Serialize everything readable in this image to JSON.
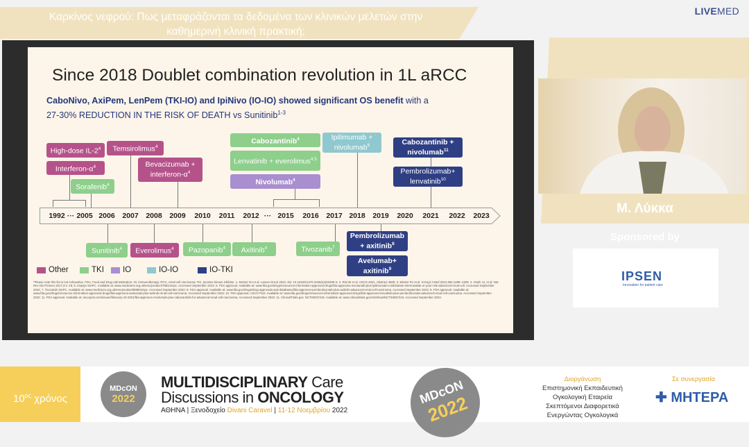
{
  "header": {
    "title": "Καρκίνος νεφρού: Πως μεταφράζονται τα δεδομένα των κλινικών μελετών στην καθημερινή κλινική πρακτική;",
    "brand_bold": "LIVE",
    "brand_light": "MED"
  },
  "slide": {
    "title": "Since 2018 Doublet combination revolution in 1L aRCC",
    "subtitle_bold": "CaboNivo, AxiPem, LenPem (TKI-IO) and IpiNivo (IO-IO) showed significant OS benefit",
    "subtitle_normal": " with a",
    "subtitle_line2": "27-30% REDUCTION IN THE RISK OF DEATH vs Sunitinib",
    "subtitle_sup": "1-3",
    "years": [
      "1992",
      "···",
      "2005",
      "2006",
      "2007",
      "2008",
      "2009",
      "2010",
      "2011",
      "2012",
      "···",
      "2015",
      "2016",
      "2017",
      "2018",
      "2019",
      "2020",
      "2021",
      "2022",
      "2023"
    ],
    "above": [
      {
        "label": "High-dose IL-2",
        "sup": "4",
        "cat": "Other"
      },
      {
        "label": "Interferon-α",
        "sup": "4",
        "cat": "Other"
      },
      {
        "label": "Sorafenib",
        "sup": "4",
        "cat": "TKI"
      },
      {
        "label": "Temsirolimus",
        "sup": "4",
        "cat": "Other"
      },
      {
        "label": "Bevacizumab + interferon-α",
        "sup": "4",
        "cat": "Other"
      },
      {
        "label": "Cabozantinib",
        "sup": "4",
        "cat": "TKI"
      },
      {
        "label": "Lenvatinib + everolimus",
        "sup": "4,5",
        "cat": "TKI"
      },
      {
        "label": "Nivolumab",
        "sup": "4",
        "cat": "IO"
      },
      {
        "label": "Ipilimumab + nivolumab",
        "sup": "6",
        "cat": "IO-IO"
      },
      {
        "label": "Cabozantinib + nivolumab",
        "sup": "11",
        "cat": "IO-TKI"
      },
      {
        "label": "Pembrolizumab+ lenvatinib",
        "sup": "10",
        "cat": "IO-TKI"
      }
    ],
    "below": [
      {
        "label": "Sunitinib",
        "sup": "4",
        "cat": "TKI"
      },
      {
        "label": "Everolimus",
        "sup": "4",
        "cat": "Other"
      },
      {
        "label": "Pazopanib",
        "sup": "4",
        "cat": "TKI"
      },
      {
        "label": "Axitinib",
        "sup": "4",
        "cat": "TKI"
      },
      {
        "label": "Tivozanib",
        "sup": "7",
        "cat": "TKI"
      },
      {
        "label": "Pembrolizumab + axitinib",
        "sup": "8",
        "cat": "IO-TKI"
      },
      {
        "label": "Avelumab+ axitinib",
        "sup": "9",
        "cat": "IO-TKI"
      }
    ],
    "legend": [
      {
        "label": "Other",
        "color": "#b5528a"
      },
      {
        "label": "TKI",
        "color": "#8dcf8b"
      },
      {
        "label": "IO",
        "color": "#a98ed0"
      },
      {
        "label": "IO-IO",
        "color": "#8fc8cf"
      },
      {
        "label": "IO-TKI",
        "color": "#2f3f84"
      }
    ],
    "footnote": "*Please note this list is not exhaustive. FDA, Food and Drug Administration; IO, immunotherapy; RCC, renal cell carcinoma; TKI, tyrosine kinase inhibitor. 1. Motzer RJ et al. Lancet Oncol 2022; doi: 10.1016/S1470-2045(22)00290-X; 2. Rini BI et al. ASCO 2021. Abstract 4500; 3. Motzer RJ et al. N Engl J Med 2021;384:1289–1300; 4. Hsieh JJ, et al. Nat Rev Dis Primers 2017;3:1–19; 5. Kisplyx SmPC. Available at: www.medicines.org.uk/emc/product/7881/smpc. Accessed September 2022; 6. FDA approval. Available at: www.fda.gov/drugs/resources-information-approved-drugs/fda-approves-nivolumab-plus-ipilimumab-combination-intermediate-or-poor-risk-advanced-renal-cell. Accessed September 2022; 7. Tivozanib SmPC. Available at: www.medicines.org.uk/emc/product/8995/smpc. Accessed September 2022; 8. FDA approval. Available at: www.fda.gov/drugs/drug-approvals-and-databases/fda-approves-pembrolizumab-plus-axitinib-advanced-renal-cell-carcinoma. Accessed September 2022; 9. FDA approval. Available at: www.fda.gov/drugs/resources-information-approved-drugs/fda-approves-avelumab-plus-axitinib-renal-cell-carcinoma. Accessed September 2022; 10. FDA approval. ASCO Post. Available at: www.fda.gov/drugs/resources-information-approved-drugs/fda-approves-lenvatinib-plus-pembrolizumab-advanced-renal-cell-carcinoma. Accessed September 2022; 11. FDA approval. Available at: ascopost.com/issues/february-10-2021/fda-approves-nivolumab-plus-cabozantinib-for-advanced-renal-cell-carcinoma. Accessed September 2022; 11. ClinicalTrials.gov. NCT03937219. Available at: www.clinicaltrials.gov/ct2/show/NCT03937219. Accessed September 2022."
  },
  "speaker": {
    "name": "Μ. Λύκκα",
    "sponsored_label": "Sponsored by",
    "sponsor": "IPSEN",
    "sponsor_tagline": "Innovation for patient care"
  },
  "footer": {
    "years_num": "10",
    "years_sup": "ος",
    "years_text": " χρόνος",
    "logo_top": "MDcON",
    "logo_year": "2022",
    "title_1_bold": "MULTIDISCIPLINARY",
    "title_1_light": " Care",
    "title_2_light": "Discussions in ",
    "title_2_bold": "ONCOLOGY",
    "loc_1": "ΑΘΗΝΑ | Ξενοδοχείο ",
    "loc_venue": "Divani Caravel",
    "loc_2": " | ",
    "loc_dates": "11-12 Νοεμβρίου",
    "loc_3": " 2022",
    "org_label": "Διοργάνωση",
    "org_lines": [
      "Επιστημονική Εκπαιδευτική",
      "Ογκολογική Εταιρεία",
      "Σκεπτόμενοι Διαφορετικά",
      "Ενεργώντας Ογκολογικά"
    ],
    "partner_label": "Σε συνεργασία",
    "partner": "MHTEPA"
  }
}
